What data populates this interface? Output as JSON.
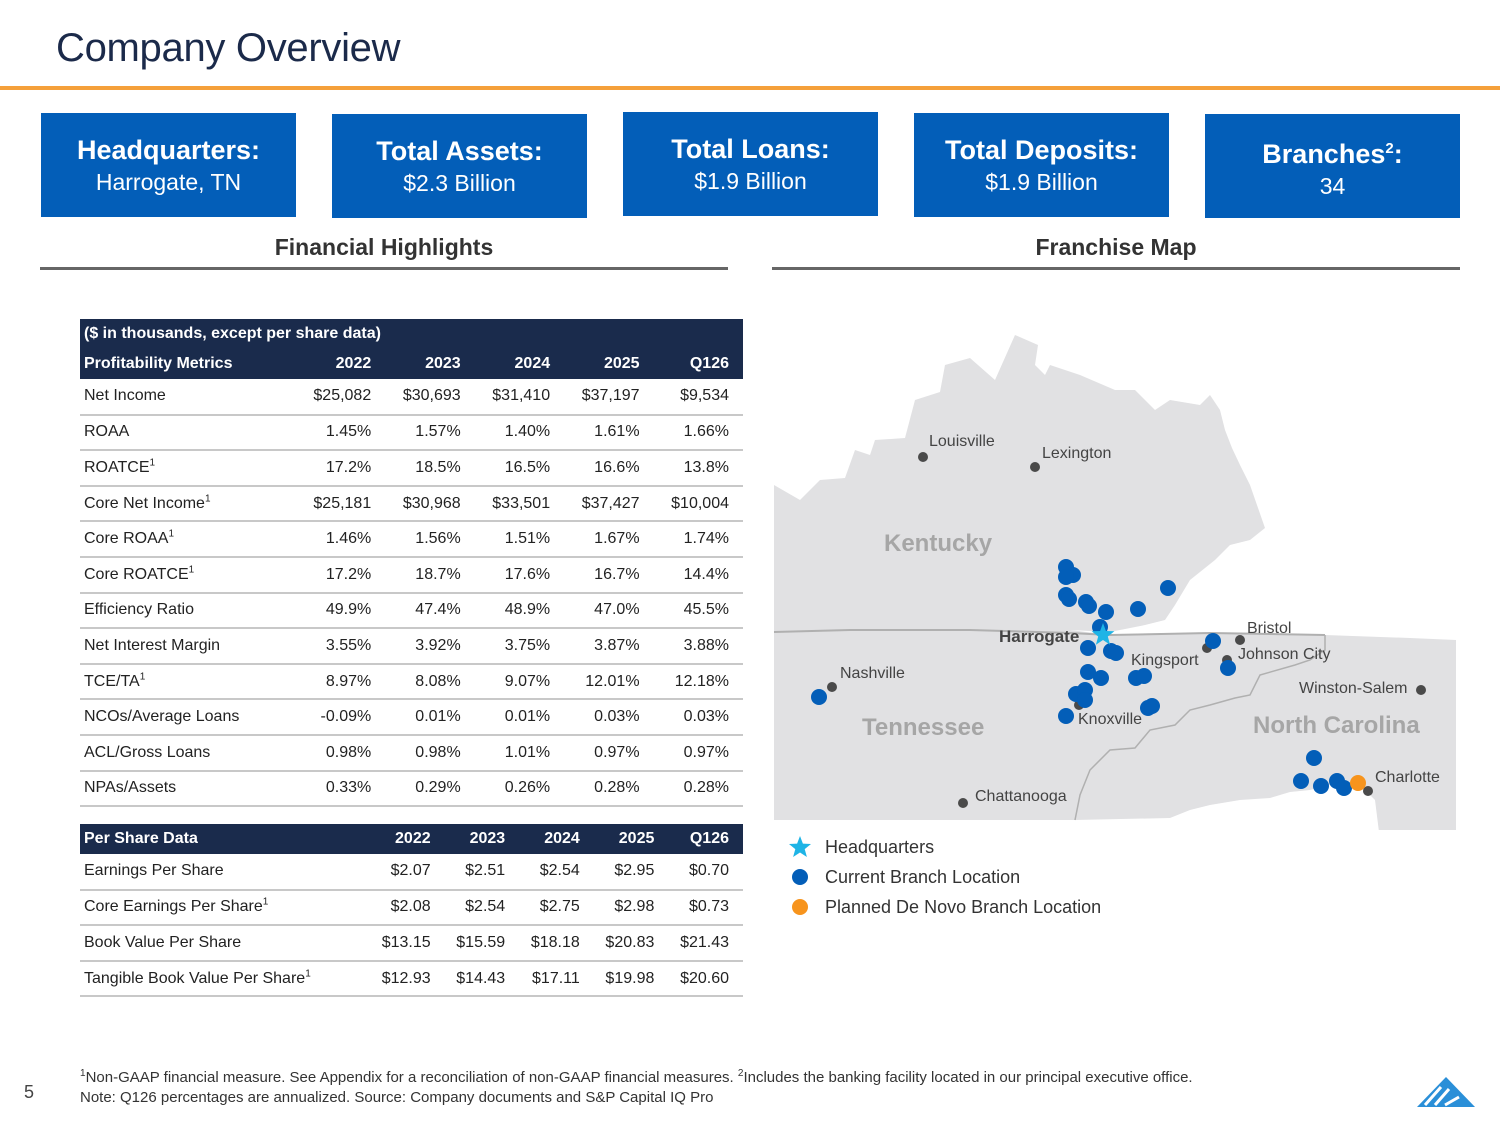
{
  "header": {
    "title": "Company Overview"
  },
  "stats": [
    {
      "label": "Headquarters:",
      "value": "Harrogate, TN"
    },
    {
      "label": "Total Assets:",
      "value": "$2.3 Billion"
    },
    {
      "label": "Total Loans:",
      "value": "$1.9 Billion"
    },
    {
      "label": "Total Deposits:",
      "value": "$1.9 Billion"
    },
    {
      "label": "Branches",
      "label_sup": "2",
      "label_suffix": ":",
      "value": "34"
    }
  ],
  "sections": {
    "financial_highlights": "Financial Highlights",
    "franchise_map": "Franchise Map"
  },
  "profitability_table": {
    "caption": "($ in thousands, except per share data)",
    "header": [
      "Profitability Metrics",
      "2022",
      "2023",
      "2024",
      "2025",
      "Q126"
    ],
    "rows": [
      {
        "label": "Net Income",
        "sup": "",
        "values": [
          "$25,082",
          "$30,693",
          "$31,410",
          "$37,197",
          "$9,534"
        ]
      },
      {
        "label": "ROAA",
        "sup": "",
        "values": [
          "1.45%",
          "1.57%",
          "1.40%",
          "1.61%",
          "1.66%"
        ]
      },
      {
        "label": "ROATCE",
        "sup": "1",
        "values": [
          "17.2%",
          "18.5%",
          "16.5%",
          "16.6%",
          "13.8%"
        ]
      },
      {
        "label": "Core Net Income",
        "sup": "1",
        "values": [
          "$25,181",
          "$30,968",
          "$33,501",
          "$37,427",
          "$10,004"
        ]
      },
      {
        "label": "Core ROAA",
        "sup": "1",
        "values": [
          "1.46%",
          "1.56%",
          "1.51%",
          "1.67%",
          "1.74%"
        ]
      },
      {
        "label": "Core ROATCE",
        "sup": "1",
        "values": [
          "17.2%",
          "18.7%",
          "17.6%",
          "16.7%",
          "14.4%"
        ]
      },
      {
        "label": "Efficiency Ratio",
        "sup": "",
        "values": [
          "49.9%",
          "47.4%",
          "48.9%",
          "47.0%",
          "45.5%"
        ]
      },
      {
        "label": "Net Interest Margin",
        "sup": "",
        "values": [
          "3.55%",
          "3.92%",
          "3.75%",
          "3.87%",
          "3.88%"
        ]
      },
      {
        "label": "TCE/TA",
        "sup": "1",
        "values": [
          "8.97%",
          "8.08%",
          "9.07%",
          "12.01%",
          "12.18%"
        ]
      },
      {
        "label": "NCOs/Average Loans",
        "sup": "",
        "values": [
          "-0.09%",
          "0.01%",
          "0.01%",
          "0.03%",
          "0.03%"
        ]
      },
      {
        "label": "ACL/Gross Loans",
        "sup": "",
        "values": [
          "0.98%",
          "0.98%",
          "1.01%",
          "0.97%",
          "0.97%"
        ]
      },
      {
        "label": "NPAs/Assets",
        "sup": "",
        "values": [
          "0.33%",
          "0.29%",
          "0.26%",
          "0.28%",
          "0.28%"
        ]
      }
    ]
  },
  "per_share_table": {
    "header": [
      "Per Share Data",
      "2022",
      "2023",
      "2024",
      "2025",
      "Q126"
    ],
    "rows": [
      {
        "label": "Earnings Per Share",
        "sup": "",
        "values": [
          "$2.07",
          "$2.51",
          "$2.54",
          "$2.95",
          "$0.70"
        ]
      },
      {
        "label": "Core Earnings Per Share",
        "sup": "1",
        "values": [
          "$2.08",
          "$2.54",
          "$2.75",
          "$2.98",
          "$0.73"
        ]
      },
      {
        "label": "Book Value Per Share",
        "sup": "",
        "values": [
          "$13.15",
          "$15.59",
          "$18.18",
          "$20.83",
          "$21.43"
        ]
      },
      {
        "label": "Tangible Book Value Per Share",
        "sup": "1",
        "values": [
          "$12.93",
          "$14.43",
          "$17.11",
          "$19.98",
          "$20.60"
        ]
      }
    ]
  },
  "map": {
    "states": [
      "Kentucky",
      "Tennessee",
      "North Carolina"
    ],
    "headquarters_label": "Harrogate",
    "cities": [
      "Louisville",
      "Lexington",
      "Nashville",
      "Kingsport",
      "Bristol",
      "Johnson City",
      "Winston-Salem",
      "Knoxville",
      "Chattanooga",
      "Charlotte"
    ],
    "colors": {
      "land": "#e1e1e3",
      "branch": "#035eb8",
      "planned": "#f7941d",
      "hq": "#1eb4e6",
      "city": "#4a4a4a"
    }
  },
  "legend": [
    {
      "icon": "star-icon",
      "label": "Headquarters"
    },
    {
      "icon": "blue-dot-icon",
      "label": "Current Branch Location"
    },
    {
      "icon": "orange-dot-icon",
      "label": "Planned De Novo Branch Location"
    }
  ],
  "footer": {
    "page_number": "5",
    "footnote_1_sup": "1",
    "footnote_1": "Non-GAAP financial measure. See Appendix for a reconciliation of non-GAAP financial measures. ",
    "footnote_2_sup": "2",
    "footnote_2": "Includes the banking facility located in our principal executive office.",
    "note": "Note: Q126 percentages are annualized.  Source: Company documents and S&P Capital IQ Pro"
  }
}
